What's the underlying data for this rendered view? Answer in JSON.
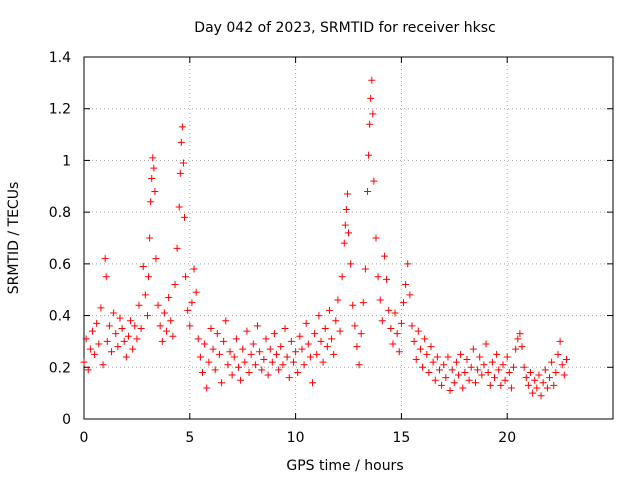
{
  "chart_data": {
    "type": "scatter",
    "title": "Day 042 of 2023, SRMTID for receiver hksc",
    "xlabel": "GPS time / hours",
    "ylabel": "SRMTID / TECUs",
    "xlim": [
      0,
      25
    ],
    "ylim": [
      0,
      1.4
    ],
    "xticks": [
      0,
      5,
      10,
      15,
      20
    ],
    "yticks": [
      0,
      0.2,
      0.4,
      0.6,
      0.8,
      1,
      1.2,
      1.4
    ],
    "xtick_labels": [
      "0",
      "5",
      "10",
      "15",
      "20"
    ],
    "ytick_labels": [
      "0",
      "0.2",
      "0.4",
      "0.6",
      "0.8",
      "1",
      "1.2",
      "1.4"
    ],
    "grid": true,
    "marker": "+",
    "color": "#ff0000",
    "series": [
      {
        "name": "SRMTID",
        "points": [
          [
            0.0,
            0.22
          ],
          [
            0.1,
            0.31
          ],
          [
            0.2,
            0.19
          ],
          [
            0.3,
            0.27
          ],
          [
            0.4,
            0.34
          ],
          [
            0.5,
            0.25
          ],
          [
            0.6,
            0.37
          ],
          [
            0.7,
            0.29
          ],
          [
            0.8,
            0.43
          ],
          [
            0.9,
            0.21
          ],
          [
            1.0,
            0.62
          ],
          [
            1.05,
            0.55
          ],
          [
            1.1,
            0.3
          ],
          [
            1.2,
            0.36
          ],
          [
            1.3,
            0.26
          ],
          [
            1.4,
            0.41
          ],
          [
            1.5,
            0.33
          ],
          [
            1.6,
            0.28
          ],
          [
            1.7,
            0.39
          ],
          [
            1.8,
            0.35
          ],
          [
            1.9,
            0.3
          ],
          [
            2.0,
            0.24
          ],
          [
            2.1,
            0.32
          ],
          [
            2.2,
            0.38
          ],
          [
            2.3,
            0.27
          ],
          [
            2.4,
            0.36
          ],
          [
            2.5,
            0.31
          ],
          [
            2.6,
            0.44
          ],
          [
            2.7,
            0.35
          ],
          [
            2.8,
            0.59
          ],
          [
            2.9,
            0.48
          ],
          [
            3.0,
            0.4
          ],
          [
            3.05,
            0.55
          ],
          [
            3.1,
            0.7
          ],
          [
            3.15,
            0.84
          ],
          [
            3.2,
            0.93
          ],
          [
            3.25,
            1.01
          ],
          [
            3.3,
            0.97
          ],
          [
            3.35,
            0.88
          ],
          [
            3.4,
            0.62
          ],
          [
            3.5,
            0.44
          ],
          [
            3.6,
            0.36
          ],
          [
            3.7,
            0.3
          ],
          [
            3.8,
            0.41
          ],
          [
            3.9,
            0.34
          ],
          [
            4.0,
            0.47
          ],
          [
            4.1,
            0.38
          ],
          [
            4.2,
            0.32
          ],
          [
            4.3,
            0.52
          ],
          [
            4.4,
            0.66
          ],
          [
            4.5,
            0.82
          ],
          [
            4.55,
            0.95
          ],
          [
            4.6,
            1.07
          ],
          [
            4.65,
            1.13
          ],
          [
            4.7,
            0.99
          ],
          [
            4.75,
            0.78
          ],
          [
            4.8,
            0.55
          ],
          [
            4.9,
            0.42
          ],
          [
            5.0,
            0.36
          ],
          [
            5.1,
            0.45
          ],
          [
            5.2,
            0.58
          ],
          [
            5.3,
            0.49
          ],
          [
            5.4,
            0.31
          ],
          [
            5.5,
            0.24
          ],
          [
            5.6,
            0.18
          ],
          [
            5.7,
            0.29
          ],
          [
            5.8,
            0.12
          ],
          [
            5.9,
            0.22
          ],
          [
            6.0,
            0.35
          ],
          [
            6.1,
            0.27
          ],
          [
            6.2,
            0.19
          ],
          [
            6.3,
            0.33
          ],
          [
            6.4,
            0.25
          ],
          [
            6.5,
            0.14
          ],
          [
            6.6,
            0.3
          ],
          [
            6.7,
            0.38
          ],
          [
            6.8,
            0.21
          ],
          [
            6.9,
            0.26
          ],
          [
            7.0,
            0.17
          ],
          [
            7.1,
            0.24
          ],
          [
            7.2,
            0.31
          ],
          [
            7.3,
            0.2
          ],
          [
            7.4,
            0.15
          ],
          [
            7.5,
            0.27
          ],
          [
            7.6,
            0.22
          ],
          [
            7.7,
            0.34
          ],
          [
            7.8,
            0.18
          ],
          [
            7.9,
            0.25
          ],
          [
            8.0,
            0.29
          ],
          [
            8.1,
            0.21
          ],
          [
            8.2,
            0.36
          ],
          [
            8.3,
            0.26
          ],
          [
            8.4,
            0.19
          ],
          [
            8.5,
            0.23
          ],
          [
            8.6,
            0.31
          ],
          [
            8.7,
            0.17
          ],
          [
            8.8,
            0.27
          ],
          [
            8.9,
            0.22
          ],
          [
            9.0,
            0.33
          ],
          [
            9.1,
            0.25
          ],
          [
            9.2,
            0.19
          ],
          [
            9.3,
            0.28
          ],
          [
            9.4,
            0.21
          ],
          [
            9.5,
            0.35
          ],
          [
            9.6,
            0.24
          ],
          [
            9.7,
            0.16
          ],
          [
            9.8,
            0.3
          ],
          [
            9.9,
            0.22
          ],
          [
            10.0,
            0.26
          ],
          [
            10.1,
            0.18
          ],
          [
            10.2,
            0.32
          ],
          [
            10.3,
            0.27
          ],
          [
            10.4,
            0.21
          ],
          [
            10.5,
            0.37
          ],
          [
            10.6,
            0.29
          ],
          [
            10.7,
            0.24
          ],
          [
            10.8,
            0.14
          ],
          [
            10.9,
            0.33
          ],
          [
            11.0,
            0.25
          ],
          [
            11.1,
            0.4
          ],
          [
            11.2,
            0.3
          ],
          [
            11.3,
            0.22
          ],
          [
            11.4,
            0.35
          ],
          [
            11.5,
            0.28
          ],
          [
            11.6,
            0.42
          ],
          [
            11.7,
            0.31
          ],
          [
            11.8,
            0.25
          ],
          [
            11.9,
            0.38
          ],
          [
            12.0,
            0.46
          ],
          [
            12.1,
            0.34
          ],
          [
            12.2,
            0.55
          ],
          [
            12.3,
            0.68
          ],
          [
            12.35,
            0.75
          ],
          [
            12.4,
            0.81
          ],
          [
            12.45,
            0.87
          ],
          [
            12.5,
            0.72
          ],
          [
            12.6,
            0.6
          ],
          [
            12.7,
            0.44
          ],
          [
            12.8,
            0.36
          ],
          [
            12.9,
            0.28
          ],
          [
            13.0,
            0.21
          ],
          [
            13.1,
            0.33
          ],
          [
            13.2,
            0.45
          ],
          [
            13.3,
            0.58
          ],
          [
            13.4,
            0.88
          ],
          [
            13.45,
            1.02
          ],
          [
            13.5,
            1.14
          ],
          [
            13.55,
            1.24
          ],
          [
            13.6,
            1.31
          ],
          [
            13.65,
            1.18
          ],
          [
            13.7,
            0.92
          ],
          [
            13.8,
            0.7
          ],
          [
            13.9,
            0.55
          ],
          [
            14.0,
            0.46
          ],
          [
            14.1,
            0.38
          ],
          [
            14.2,
            0.63
          ],
          [
            14.3,
            0.54
          ],
          [
            14.4,
            0.42
          ],
          [
            14.5,
            0.35
          ],
          [
            14.6,
            0.29
          ],
          [
            14.7,
            0.41
          ],
          [
            14.8,
            0.33
          ],
          [
            14.9,
            0.26
          ],
          [
            15.0,
            0.37
          ],
          [
            15.1,
            0.45
          ],
          [
            15.2,
            0.52
          ],
          [
            15.3,
            0.6
          ],
          [
            15.4,
            0.48
          ],
          [
            15.5,
            0.36
          ],
          [
            15.6,
            0.3
          ],
          [
            15.7,
            0.23
          ],
          [
            15.8,
            0.34
          ],
          [
            15.9,
            0.27
          ],
          [
            16.0,
            0.2
          ],
          [
            16.1,
            0.31
          ],
          [
            16.2,
            0.25
          ],
          [
            16.3,
            0.18
          ],
          [
            16.4,
            0.28
          ],
          [
            16.5,
            0.22
          ],
          [
            16.6,
            0.15
          ],
          [
            16.7,
            0.24
          ],
          [
            16.8,
            0.19
          ],
          [
            16.9,
            0.13
          ],
          [
            17.0,
            0.21
          ],
          [
            17.1,
            0.16
          ],
          [
            17.2,
            0.24
          ],
          [
            17.3,
            0.11
          ],
          [
            17.4,
            0.19
          ],
          [
            17.5,
            0.14
          ],
          [
            17.6,
            0.22
          ],
          [
            17.7,
            0.17
          ],
          [
            17.8,
            0.25
          ],
          [
            17.9,
            0.12
          ],
          [
            18.0,
            0.18
          ],
          [
            18.1,
            0.23
          ],
          [
            18.2,
            0.15
          ],
          [
            18.3,
            0.2
          ],
          [
            18.4,
            0.27
          ],
          [
            18.5,
            0.14
          ],
          [
            18.6,
            0.19
          ],
          [
            18.7,
            0.24
          ],
          [
            18.8,
            0.17
          ],
          [
            18.9,
            0.21
          ],
          [
            19.0,
            0.29
          ],
          [
            19.1,
            0.18
          ],
          [
            19.2,
            0.13
          ],
          [
            19.3,
            0.22
          ],
          [
            19.4,
            0.16
          ],
          [
            19.5,
            0.25
          ],
          [
            19.6,
            0.19
          ],
          [
            19.7,
            0.13
          ],
          [
            19.8,
            0.21
          ],
          [
            19.9,
            0.15
          ],
          [
            20.0,
            0.24
          ],
          [
            20.1,
            0.18
          ],
          [
            20.2,
            0.12
          ],
          [
            20.3,
            0.2
          ],
          [
            20.4,
            0.27
          ],
          [
            20.5,
            0.31
          ],
          [
            20.6,
            0.33
          ],
          [
            20.7,
            0.28
          ],
          [
            20.8,
            0.2
          ],
          [
            20.9,
            0.16
          ],
          [
            21.0,
            0.13
          ],
          [
            21.1,
            0.18
          ],
          [
            21.2,
            0.1
          ],
          [
            21.3,
            0.15
          ],
          [
            21.4,
            0.12
          ],
          [
            21.5,
            0.17
          ],
          [
            21.6,
            0.09
          ],
          [
            21.7,
            0.14
          ],
          [
            21.8,
            0.19
          ],
          [
            21.9,
            0.12
          ],
          [
            22.0,
            0.16
          ],
          [
            22.1,
            0.22
          ],
          [
            22.2,
            0.13
          ],
          [
            22.3,
            0.18
          ],
          [
            22.4,
            0.25
          ],
          [
            22.5,
            0.3
          ],
          [
            22.6,
            0.21
          ],
          [
            22.7,
            0.17
          ],
          [
            22.8,
            0.23
          ]
        ]
      }
    ]
  }
}
